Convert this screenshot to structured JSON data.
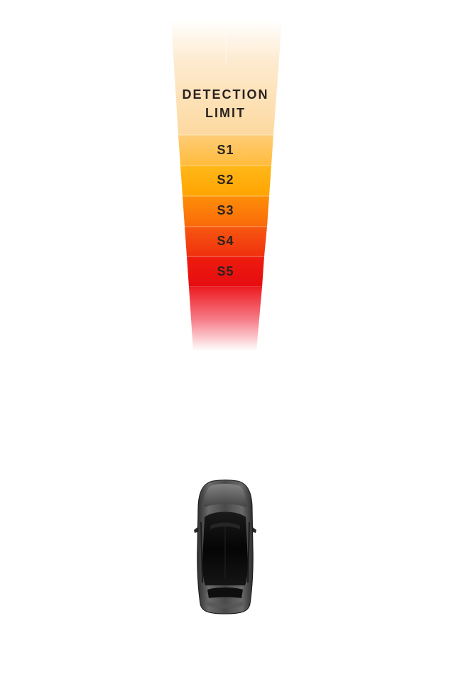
{
  "beam": {
    "detection_limit_line1": "DETECTION",
    "detection_limit_line2": "LIMIT",
    "zones": [
      {
        "id": "s1",
        "label": "S1",
        "color": "#ffc45c"
      },
      {
        "id": "s2",
        "label": "S2",
        "color": "#ffb000"
      },
      {
        "id": "s3",
        "label": "S3",
        "color": "#fc7f08"
      },
      {
        "id": "s4",
        "label": "S4",
        "color": "#f4420e"
      },
      {
        "id": "s5",
        "label": "S5",
        "color": "#ee1410"
      }
    ],
    "top_color": "#fde2b8",
    "fade_color": "#ffffff"
  },
  "vehicle": {
    "icon": "car-top-view-icon",
    "body_color": "#3a3a3a",
    "glass_color": "#111111"
  }
}
